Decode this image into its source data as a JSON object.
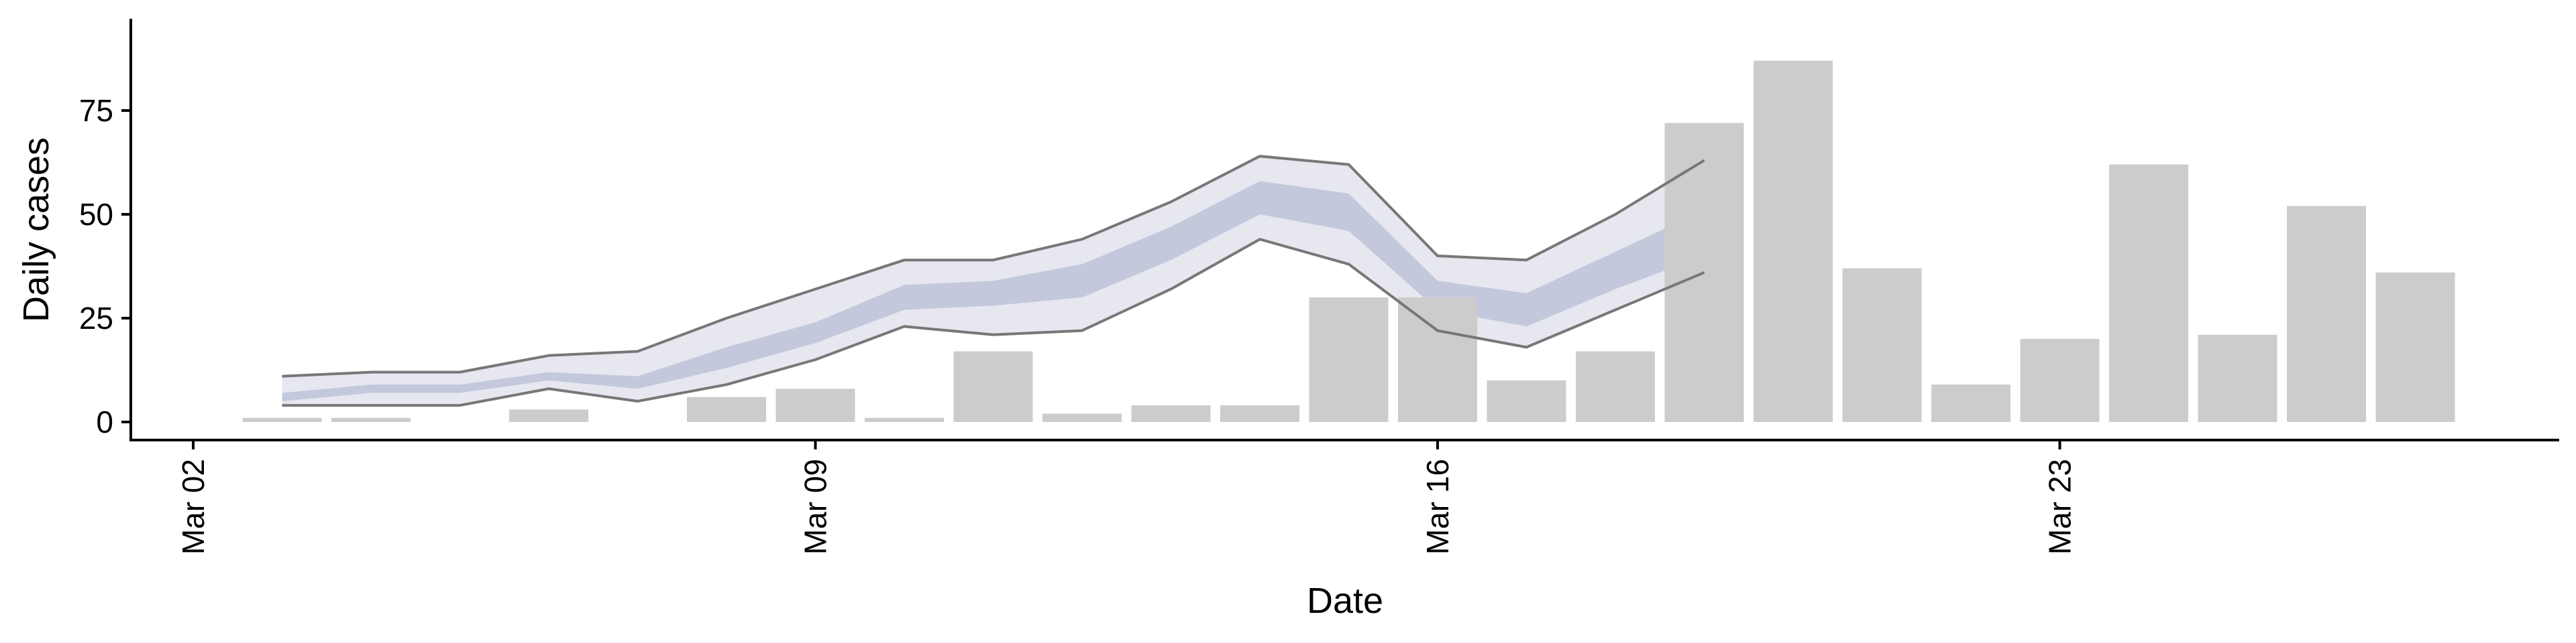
{
  "chart_data": {
    "type": "bar",
    "xlabel": "Date",
    "ylabel": "Daily cases",
    "x_tick_labels": [
      {
        "date": "2020-03-02",
        "label": "Mar 02"
      },
      {
        "date": "2020-03-09",
        "label": "Mar 09"
      },
      {
        "date": "2020-03-16",
        "label": "Mar 16"
      },
      {
        "date": "2020-03-23",
        "label": "Mar 23"
      }
    ],
    "y_ticks": [
      0,
      25,
      50,
      75
    ],
    "xlim": [
      "2020-03-02",
      "2020-03-28"
    ],
    "ylim": [
      -4,
      92
    ],
    "grid": false,
    "bars": {
      "color": "#cccccc",
      "dates": [
        "2020-03-03",
        "2020-03-04",
        "2020-03-05",
        "2020-03-06",
        "2020-03-07",
        "2020-03-08",
        "2020-03-09",
        "2020-03-10",
        "2020-03-11",
        "2020-03-12",
        "2020-03-13",
        "2020-03-14",
        "2020-03-15",
        "2020-03-16",
        "2020-03-17",
        "2020-03-18",
        "2020-03-19",
        "2020-03-20",
        "2020-03-21",
        "2020-03-22",
        "2020-03-23",
        "2020-03-24",
        "2020-03-25",
        "2020-03-26",
        "2020-03-27",
        "2020-03-28"
      ],
      "values": [
        1,
        1,
        0,
        3,
        0,
        6,
        8,
        1,
        17,
        2,
        4,
        4,
        30,
        30,
        10,
        17,
        72,
        87,
        37,
        9,
        20,
        62,
        21,
        52,
        36,
        0
      ]
    },
    "estimate": {
      "dates": [
        "2020-03-03",
        "2020-03-04",
        "2020-03-05",
        "2020-03-06",
        "2020-03-07",
        "2020-03-08",
        "2020-03-09",
        "2020-03-10",
        "2020-03-11",
        "2020-03-12",
        "2020-03-13",
        "2020-03-14",
        "2020-03-15",
        "2020-03-16",
        "2020-03-17",
        "2020-03-18",
        "2020-03-19"
      ],
      "outer_lower": [
        4,
        4,
        4,
        8,
        5,
        9,
        15,
        23,
        21,
        22,
        32,
        44,
        38,
        22,
        18,
        27,
        36
      ],
      "outer_upper": [
        11,
        12,
        12,
        16,
        17,
        25,
        32,
        39,
        39,
        44,
        53,
        64,
        62,
        40,
        39,
        50,
        63
      ],
      "inner_lower": [
        5,
        7,
        7,
        10,
        8,
        13,
        19,
        27,
        28,
        30,
        39,
        50,
        46,
        27,
        23,
        32,
        40
      ],
      "inner_upper": [
        7,
        9,
        9,
        12,
        11,
        18,
        24,
        33,
        34,
        38,
        47,
        58,
        55,
        34,
        31,
        41,
        51
      ],
      "outer_color": "#e6e7ef",
      "inner_color": "#c3c8dc",
      "line_color": "#777777"
    }
  }
}
